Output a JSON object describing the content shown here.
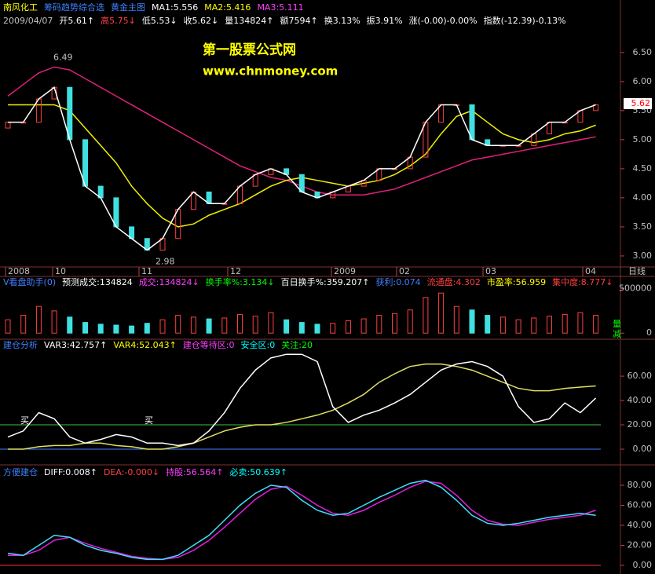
{
  "header": [
    {
      "text": "南风化工",
      "color": "#ffff00"
    },
    {
      "text": "筹码趋势综合选",
      "color": "#4080ff"
    },
    {
      "text": "黄金主图",
      "color": "#4080ff"
    },
    {
      "text": "MA1:5.556",
      "color": "#ffffff"
    },
    {
      "text": "MA2:5.416",
      "color": "#ffff00"
    },
    {
      "text": "MA3:5.111",
      "color": "#ff40ff"
    }
  ],
  "quote": [
    {
      "text": "2009/04/07",
      "color": "#c0c0c0"
    },
    {
      "text": "开5.61↑",
      "color": "#ffffff"
    },
    {
      "text": "高5.75↓",
      "color": "#ff4040"
    },
    {
      "text": "低5.53↓",
      "color": "#ffffff"
    },
    {
      "text": "收5.62↓",
      "color": "#ffffff"
    },
    {
      "text": "量134824↑",
      "color": "#ffffff"
    },
    {
      "text": "额7594↑",
      "color": "#ffffff"
    },
    {
      "text": "换3.13%",
      "color": "#ffffff"
    },
    {
      "text": "振3.91%",
      "color": "#ffffff"
    },
    {
      "text": "涨(-0.00)-0.00%",
      "color": "#ffffff"
    },
    {
      "text": "指数(-12.39)-0.13%",
      "color": "#ffffff"
    }
  ],
  "watermark": [
    "第一股票公式网",
    "www.chnmoney.com"
  ],
  "price_panel": {
    "ylim": [
      2.81,
      6.93
    ],
    "yticks": [
      {
        "value": 3,
        "label": "3.00"
      },
      {
        "value": 3.5,
        "label": "3.50"
      },
      {
        "value": 4,
        "label": "4.00"
      },
      {
        "value": 4.5,
        "label": "4.50"
      },
      {
        "value": 5,
        "label": "5.00"
      },
      {
        "value": 5.5,
        "label": "5.50"
      },
      {
        "value": 6,
        "label": "6.00"
      },
      {
        "value": 6.5,
        "label": "6.50"
      }
    ],
    "annotations": [
      {
        "value": 6.49,
        "label": "6.49"
      },
      {
        "value": 2.98,
        "label": "2.98"
      }
    ],
    "current": {
      "value": 5.62,
      "label": "5.62"
    },
    "open": [
      5.2,
      5.3,
      5.3,
      5.7,
      5.9,
      5.0,
      4.2,
      4.0,
      3.5,
      3.3,
      3.1,
      3.3,
      3.8,
      4.1,
      3.9,
      3.9,
      4.2,
      4.4,
      4.5,
      4.4,
      4.1,
      4.0,
      4.1,
      4.2,
      4.3,
      4.5,
      4.5,
      4.7,
      5.3,
      5.6,
      5.6,
      5.0,
      4.9,
      4.9,
      4.9,
      5.1,
      5.3,
      5.3,
      5.5
    ],
    "close": [
      5.3,
      5.3,
      5.7,
      5.9,
      5.0,
      4.2,
      4.0,
      3.5,
      3.3,
      3.1,
      3.3,
      3.8,
      4.1,
      3.9,
      3.9,
      4.2,
      4.4,
      4.5,
      4.4,
      4.1,
      4.0,
      4.1,
      4.2,
      4.3,
      4.5,
      4.5,
      4.7,
      5.3,
      5.6,
      5.6,
      5.0,
      4.9,
      4.9,
      4.9,
      5.1,
      5.3,
      5.3,
      5.5,
      5.6
    ],
    "ma_yellow": [
      5.6,
      5.6,
      5.6,
      5.6,
      5.5,
      5.2,
      4.9,
      4.6,
      4.2,
      3.9,
      3.65,
      3.5,
      3.55,
      3.7,
      3.8,
      3.9,
      4.05,
      4.2,
      4.3,
      4.35,
      4.3,
      4.25,
      4.2,
      4.25,
      4.3,
      4.4,
      4.55,
      4.75,
      5.1,
      5.4,
      5.5,
      5.3,
      5.1,
      5.0,
      4.95,
      5.0,
      5.1,
      5.15,
      5.25
    ],
    "ma_pink": [
      5.75,
      5.95,
      6.15,
      6.25,
      6.2,
      6.05,
      5.9,
      5.75,
      5.6,
      5.45,
      5.3,
      5.15,
      5.0,
      4.85,
      4.7,
      4.55,
      4.45,
      4.35,
      4.3,
      4.2,
      4.1,
      4.05,
      4.05,
      4.05,
      4.1,
      4.15,
      4.25,
      4.35,
      4.45,
      4.55,
      4.65,
      4.7,
      4.75,
      4.8,
      4.85,
      4.9,
      4.95,
      5.0,
      5.05
    ]
  },
  "dates": {
    "labels": [
      "2008",
      "10",
      "11",
      "12",
      "2009",
      "02",
      "03",
      "04"
    ],
    "period": "日线"
  },
  "volume_panel": {
    "header": [
      {
        "text": "V看盘助手(0)",
        "color": "#4080ff"
      },
      {
        "text": "预测成交:134824",
        "color": "#ffffff"
      },
      {
        "text": "成交:134824↓",
        "color": "#ff40ff"
      },
      {
        "text": "换手率%:3.134↓",
        "color": "#00ff00"
      },
      {
        "text": "百日换手%:359.207↑",
        "color": "#ffffff"
      },
      {
        "text": "获利:0.074",
        "color": "#4080ff"
      },
      {
        "text": "流通盘:4.302",
        "color": "#ff4040"
      },
      {
        "text": "市盈率:56.959",
        "color": "#ffff00"
      },
      {
        "text": "集中度:8.777↓",
        "color": "#ff4040"
      }
    ],
    "ylim": [
      -68600,
      637300
    ],
    "yticks": [
      0,
      500000
    ],
    "side_labels": [
      "量",
      "减"
    ],
    "values": [
      150000,
      200000,
      300000,
      250000,
      180000,
      120000,
      100000,
      90000,
      80000,
      110000,
      150000,
      200000,
      180000,
      160000,
      170000,
      210000,
      190000,
      230000,
      150000,
      120000,
      100000,
      110000,
      140000,
      160000,
      200000,
      220000,
      260000,
      400000,
      450000,
      300000,
      260000,
      200000,
      180000,
      150000,
      170000,
      190000,
      210000,
      230000,
      200000
    ]
  },
  "var_panel": {
    "header": [
      {
        "text": "建仓分析",
        "color": "#4080ff"
      },
      {
        "text": "VAR3:42.757↑",
        "color": "#ffffff"
      },
      {
        "text": "VAR4:52.043↑",
        "color": "#ffff00"
      },
      {
        "text": "建仓等待区:0",
        "color": "#ff40ff"
      },
      {
        "text": "安全区:0",
        "color": "#00ffff"
      },
      {
        "text": "关注:20",
        "color": "#00ff00"
      }
    ],
    "ylim": [
      -11.6,
      82
    ],
    "yticks": [
      {
        "value": 0,
        "label": "0.00"
      },
      {
        "value": 20,
        "label": "20.00"
      },
      {
        "value": 40,
        "label": "40.00"
      },
      {
        "value": 60,
        "label": "60.00"
      }
    ],
    "buy_labels": [
      "买",
      "买"
    ],
    "focus": 20,
    "white": [
      10,
      15,
      30,
      25,
      10,
      5,
      8,
      12,
      10,
      5,
      5,
      3,
      5,
      15,
      30,
      50,
      65,
      75,
      78,
      78,
      72,
      35,
      22,
      28,
      32,
      38,
      45,
      55,
      65,
      70,
      72,
      68,
      60,
      35,
      22,
      25,
      38,
      30,
      42
    ],
    "yellow": [
      0,
      0,
      2,
      3,
      3,
      5,
      5,
      3,
      2,
      0,
      0,
      2,
      5,
      10,
      15,
      18,
      20,
      20,
      22,
      25,
      28,
      32,
      38,
      45,
      55,
      62,
      68,
      70,
      70,
      68,
      65,
      60,
      55,
      50,
      48,
      48,
      50,
      51,
      52
    ]
  },
  "macd_panel": {
    "header": [
      {
        "text": "方便建仓",
        "color": "#4080ff"
      },
      {
        "text": "DIFF:0.008↑",
        "color": "#ffffff"
      },
      {
        "text": "DEA:-0.000↓",
        "color": "#ff4040"
      },
      {
        "text": "持股:56.564↑",
        "color": "#ff40ff"
      },
      {
        "text": "必卖:50.639↑",
        "color": "#00ffff"
      }
    ],
    "ylim": [
      -6.3,
      95.7
    ],
    "yticks": [
      {
        "value": 0,
        "label": "0.00"
      },
      {
        "value": 20,
        "label": "20.00"
      },
      {
        "value": 40,
        "label": "40.00"
      },
      {
        "value": 60,
        "label": "60.00"
      },
      {
        "value": 80,
        "label": "80.00"
      }
    ],
    "diff": [
      12,
      10,
      20,
      30,
      28,
      20,
      15,
      12,
      8,
      6,
      6,
      10,
      20,
      30,
      45,
      60,
      72,
      80,
      78,
      65,
      55,
      50,
      52,
      60,
      68,
      75,
      82,
      85,
      78,
      65,
      50,
      42,
      40,
      42,
      45,
      48,
      50,
      52,
      50
    ],
    "dea": [
      10,
      10,
      15,
      25,
      28,
      22,
      17,
      13,
      9,
      7,
      6,
      8,
      15,
      25,
      38,
      52,
      66,
      76,
      79,
      70,
      60,
      52,
      50,
      55,
      63,
      70,
      78,
      84,
      82,
      70,
      55,
      45,
      41,
      40,
      43,
      46,
      48,
      50,
      55
    ]
  }
}
